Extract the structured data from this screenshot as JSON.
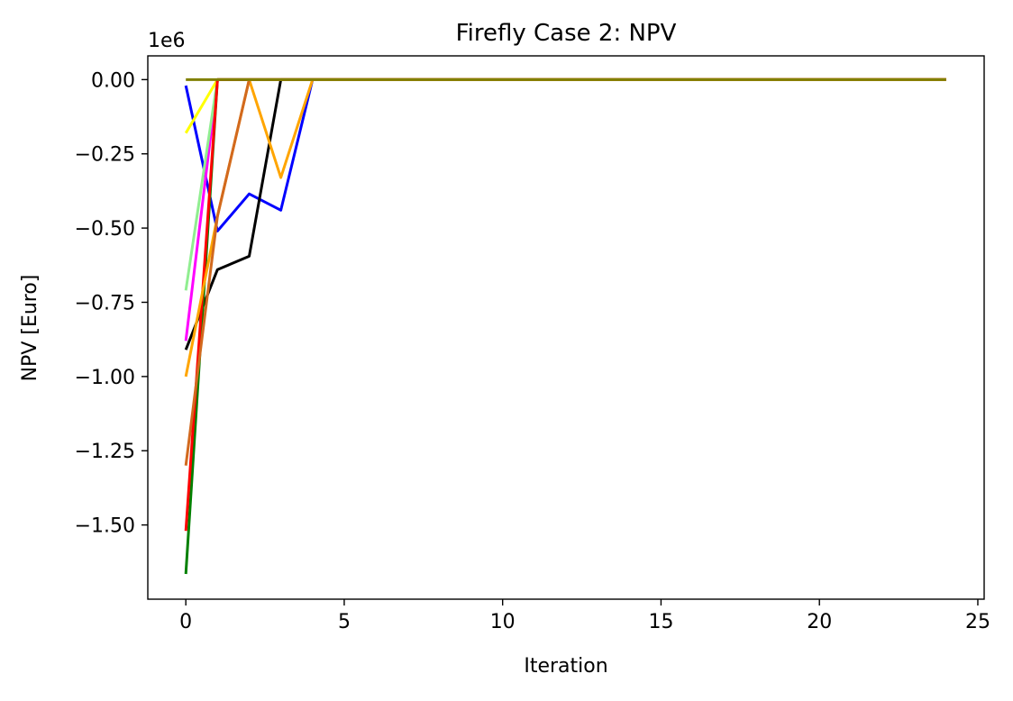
{
  "chart_data": {
    "type": "line",
    "title": "Firefly Case 2: NPV",
    "xlabel": "Iteration",
    "ylabel": "NPV [Euro]",
    "y_offset_label": "1e6",
    "y_multiplier": 1000000,
    "xlim": [
      -1.2,
      25.2
    ],
    "ylim": [
      -1.75,
      0.08
    ],
    "xticks": [
      0,
      5,
      10,
      15,
      20,
      25
    ],
    "xtick_labels": [
      "0",
      "5",
      "10",
      "15",
      "20",
      "25"
    ],
    "yticks": [
      0,
      -0.25,
      -0.5,
      -0.75,
      -1.0,
      -1.25,
      -1.5
    ],
    "ytick_labels": [
      "0.00",
      "−0.25",
      "−0.50",
      "−0.75",
      "−1.00",
      "−1.25",
      "−1.50"
    ],
    "grid": false,
    "legend": "none",
    "series": [
      {
        "color": "#0000ff",
        "x": [
          0,
          1,
          2,
          3,
          4,
          24
        ],
        "y": [
          -0.02,
          -0.51,
          -0.385,
          -0.44,
          0,
          0
        ]
      },
      {
        "color": "#000000",
        "x": [
          0,
          1,
          2,
          3,
          24
        ],
        "y": [
          -0.91,
          -0.64,
          -0.595,
          0,
          0
        ]
      },
      {
        "color": "#ff00ff",
        "x": [
          0,
          1,
          24
        ],
        "y": [
          -0.88,
          0,
          0
        ]
      },
      {
        "color": "#90ee90",
        "x": [
          0,
          1,
          24
        ],
        "y": [
          -0.71,
          0,
          0
        ]
      },
      {
        "color": "#ffff00",
        "x": [
          0,
          1,
          24
        ],
        "y": [
          -0.18,
          0,
          0
        ]
      },
      {
        "color": "#008000",
        "x": [
          0,
          1,
          24
        ],
        "y": [
          -1.665,
          0,
          0
        ]
      },
      {
        "color": "#ff0000",
        "x": [
          0,
          1,
          24
        ],
        "y": [
          -1.52,
          0,
          0
        ]
      },
      {
        "color": "#ffa500",
        "x": [
          0,
          1,
          2,
          3,
          4,
          24
        ],
        "y": [
          -1.0,
          -0.46,
          0,
          -0.33,
          0,
          0
        ]
      },
      {
        "color": "#d2691e",
        "x": [
          0,
          1,
          2,
          24
        ],
        "y": [
          -1.3,
          -0.46,
          0,
          0
        ]
      },
      {
        "color": "#808000",
        "x": [
          0,
          1,
          2,
          24
        ],
        "y": [
          0,
          0,
          0,
          0
        ]
      }
    ]
  }
}
